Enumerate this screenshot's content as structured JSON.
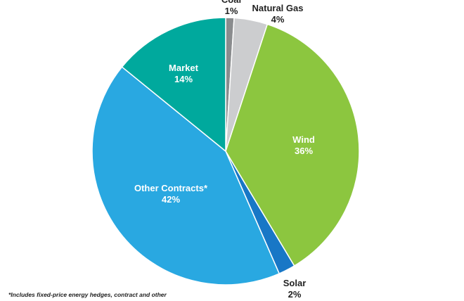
{
  "chart_data": {
    "type": "pie",
    "start_angle_deg": 0,
    "direction": "clockwise",
    "slices": [
      {
        "name": "Coal",
        "value": 1,
        "label": "1%",
        "color": "#8a8c8e"
      },
      {
        "name": "Natural Gas",
        "value": 4,
        "label": "4%",
        "color": "#cccdcf"
      },
      {
        "name": "Wind",
        "value": 36,
        "label": "36%",
        "color": "#8cc63f"
      },
      {
        "name": "Solar",
        "value": 2,
        "label": "2%",
        "color": "#1877c6"
      },
      {
        "name": "Other Contracts*",
        "value": 42,
        "label": "42%",
        "color": "#29a8e1"
      },
      {
        "name": "Market",
        "value": 14,
        "label": "14%",
        "color": "#00a99d"
      }
    ]
  },
  "footnote": "*Includes fixed-price energy hedges, contract and other"
}
